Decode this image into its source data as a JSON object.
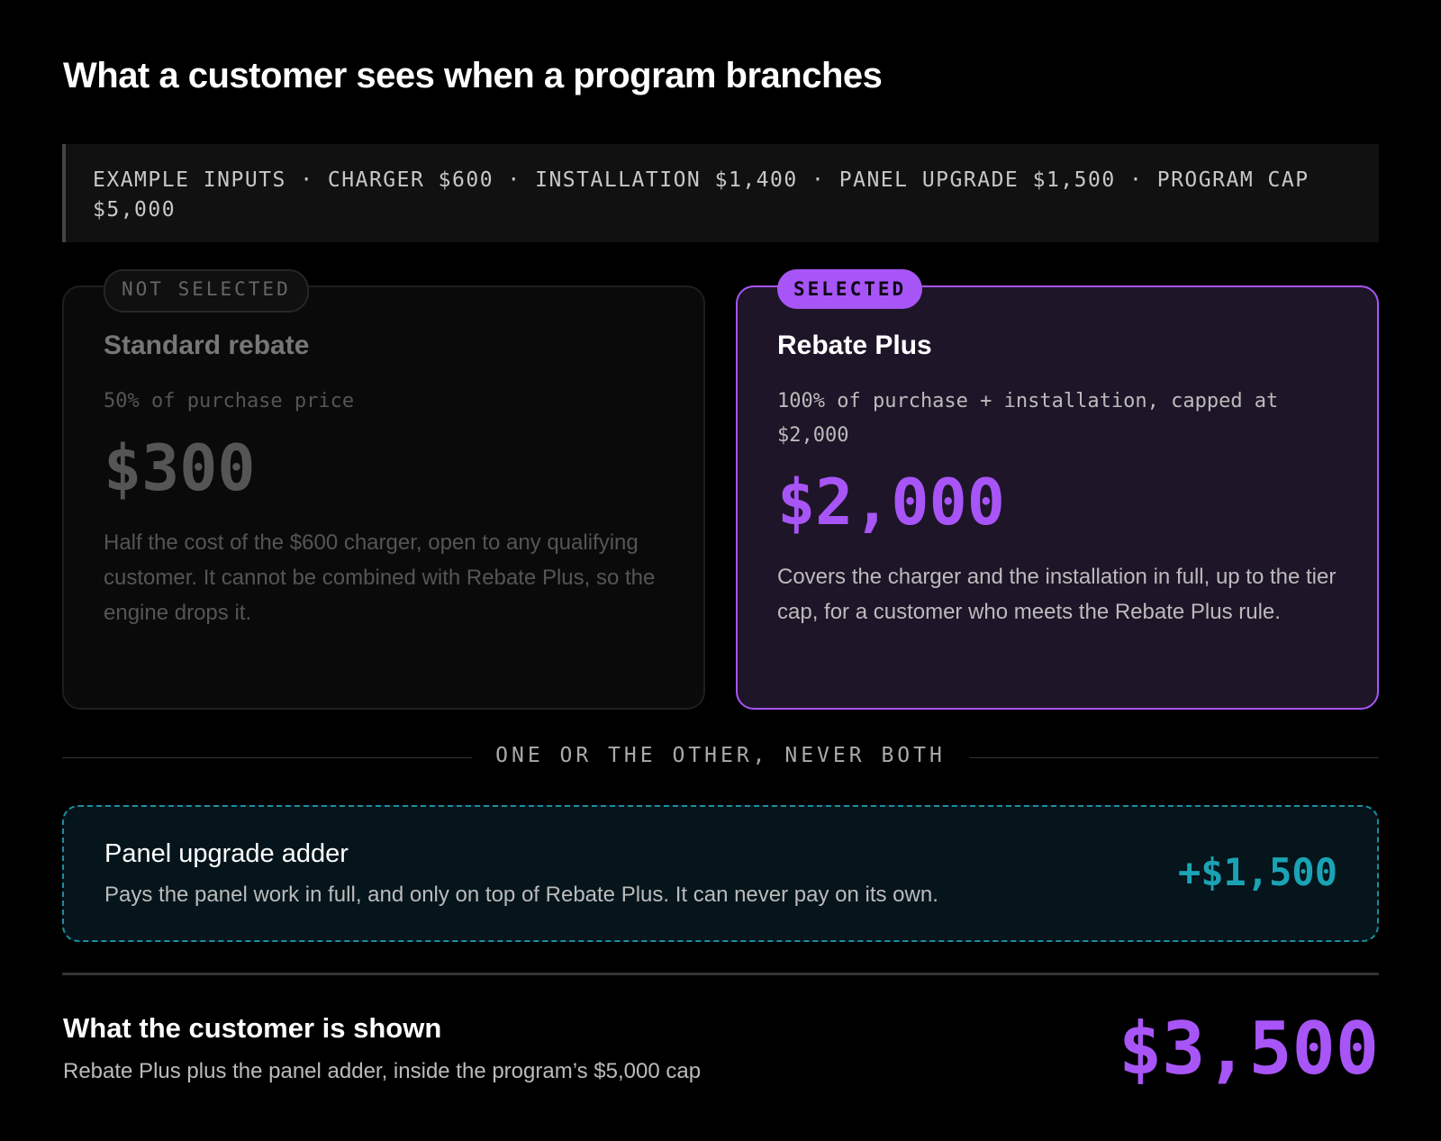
{
  "title": "What a customer sees when a program branches",
  "inputs": "EXAMPLE INPUTS · CHARGER $600 · INSTALLATION $1,400 · PANEL UPGRADE $1,500 · PROGRAM CAP $5,000",
  "options": [
    {
      "badge": "NOT SELECTED",
      "name": "Standard rebate",
      "rule": "50% of purchase price",
      "amount": "$300",
      "description": "Half the cost of the $600 charger, open to any qualifying customer. It cannot be combined with Rebate Plus, so the engine drops it."
    },
    {
      "badge": "SELECTED",
      "name": "Rebate Plus",
      "rule": "100% of purchase + installation, capped at $2,000",
      "amount": "$2,000",
      "description": "Covers the charger and the installation in full, up to the tier cap, for a customer who meets the Rebate Plus rule."
    }
  ],
  "divider": "ONE OR THE OTHER, NEVER BOTH",
  "adder": {
    "title": "Panel upgrade adder",
    "description": "Pays the panel work in full, and only on top of Rebate Plus. It can never pay on its own.",
    "amount": "+$1,500"
  },
  "total": {
    "title": "What the customer is shown",
    "description": "Rebate Plus plus the panel adder, inside the program’s $5,000 cap",
    "amount": "$3,500"
  }
}
